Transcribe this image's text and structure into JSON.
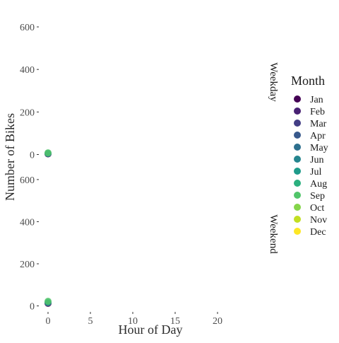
{
  "chart_data": {
    "type": "scatter",
    "xlabel": "Hour of Day",
    "ylabel": "Number of Bikes",
    "xlim": [
      -1,
      23.5
    ],
    "ylim": [
      -25,
      640
    ],
    "x_ticks": [
      0,
      5,
      10,
      15,
      20
    ],
    "y_ticks": [
      0,
      200,
      400,
      600
    ],
    "grid": false,
    "legend_position": "right",
    "legend": {
      "title": "Month",
      "entries": [
        {
          "label": "Jan",
          "color": "#440154"
        },
        {
          "label": "Feb",
          "color": "#482173"
        },
        {
          "label": "Mar",
          "color": "#433E85"
        },
        {
          "label": "Apr",
          "color": "#38598C"
        },
        {
          "label": "May",
          "color": "#2D708E"
        },
        {
          "label": "Jun",
          "color": "#25858E"
        },
        {
          "label": "Jul",
          "color": "#1E9B8A"
        },
        {
          "label": "Aug",
          "color": "#2BB07F"
        },
        {
          "label": "Sep",
          "color": "#51C56A"
        },
        {
          "label": "Oct",
          "color": "#85D54A"
        },
        {
          "label": "Nov",
          "color": "#C2DF23"
        },
        {
          "label": "Dec",
          "color": "#FDE725"
        }
      ]
    },
    "panels": [
      {
        "label": "Weekday",
        "points": [
          {
            "x": 0,
            "y": 3,
            "month": "Jan"
          },
          {
            "x": 0,
            "y": 5,
            "month": "Jul"
          },
          {
            "x": 0,
            "y": 8,
            "month": "Sep"
          }
        ]
      },
      {
        "label": "Weekend",
        "points": [
          {
            "x": 0,
            "y": 12,
            "month": "Jan"
          },
          {
            "x": 0,
            "y": 16,
            "month": "Jul"
          },
          {
            "x": 0,
            "y": 22,
            "month": "Sep"
          }
        ]
      }
    ]
  }
}
